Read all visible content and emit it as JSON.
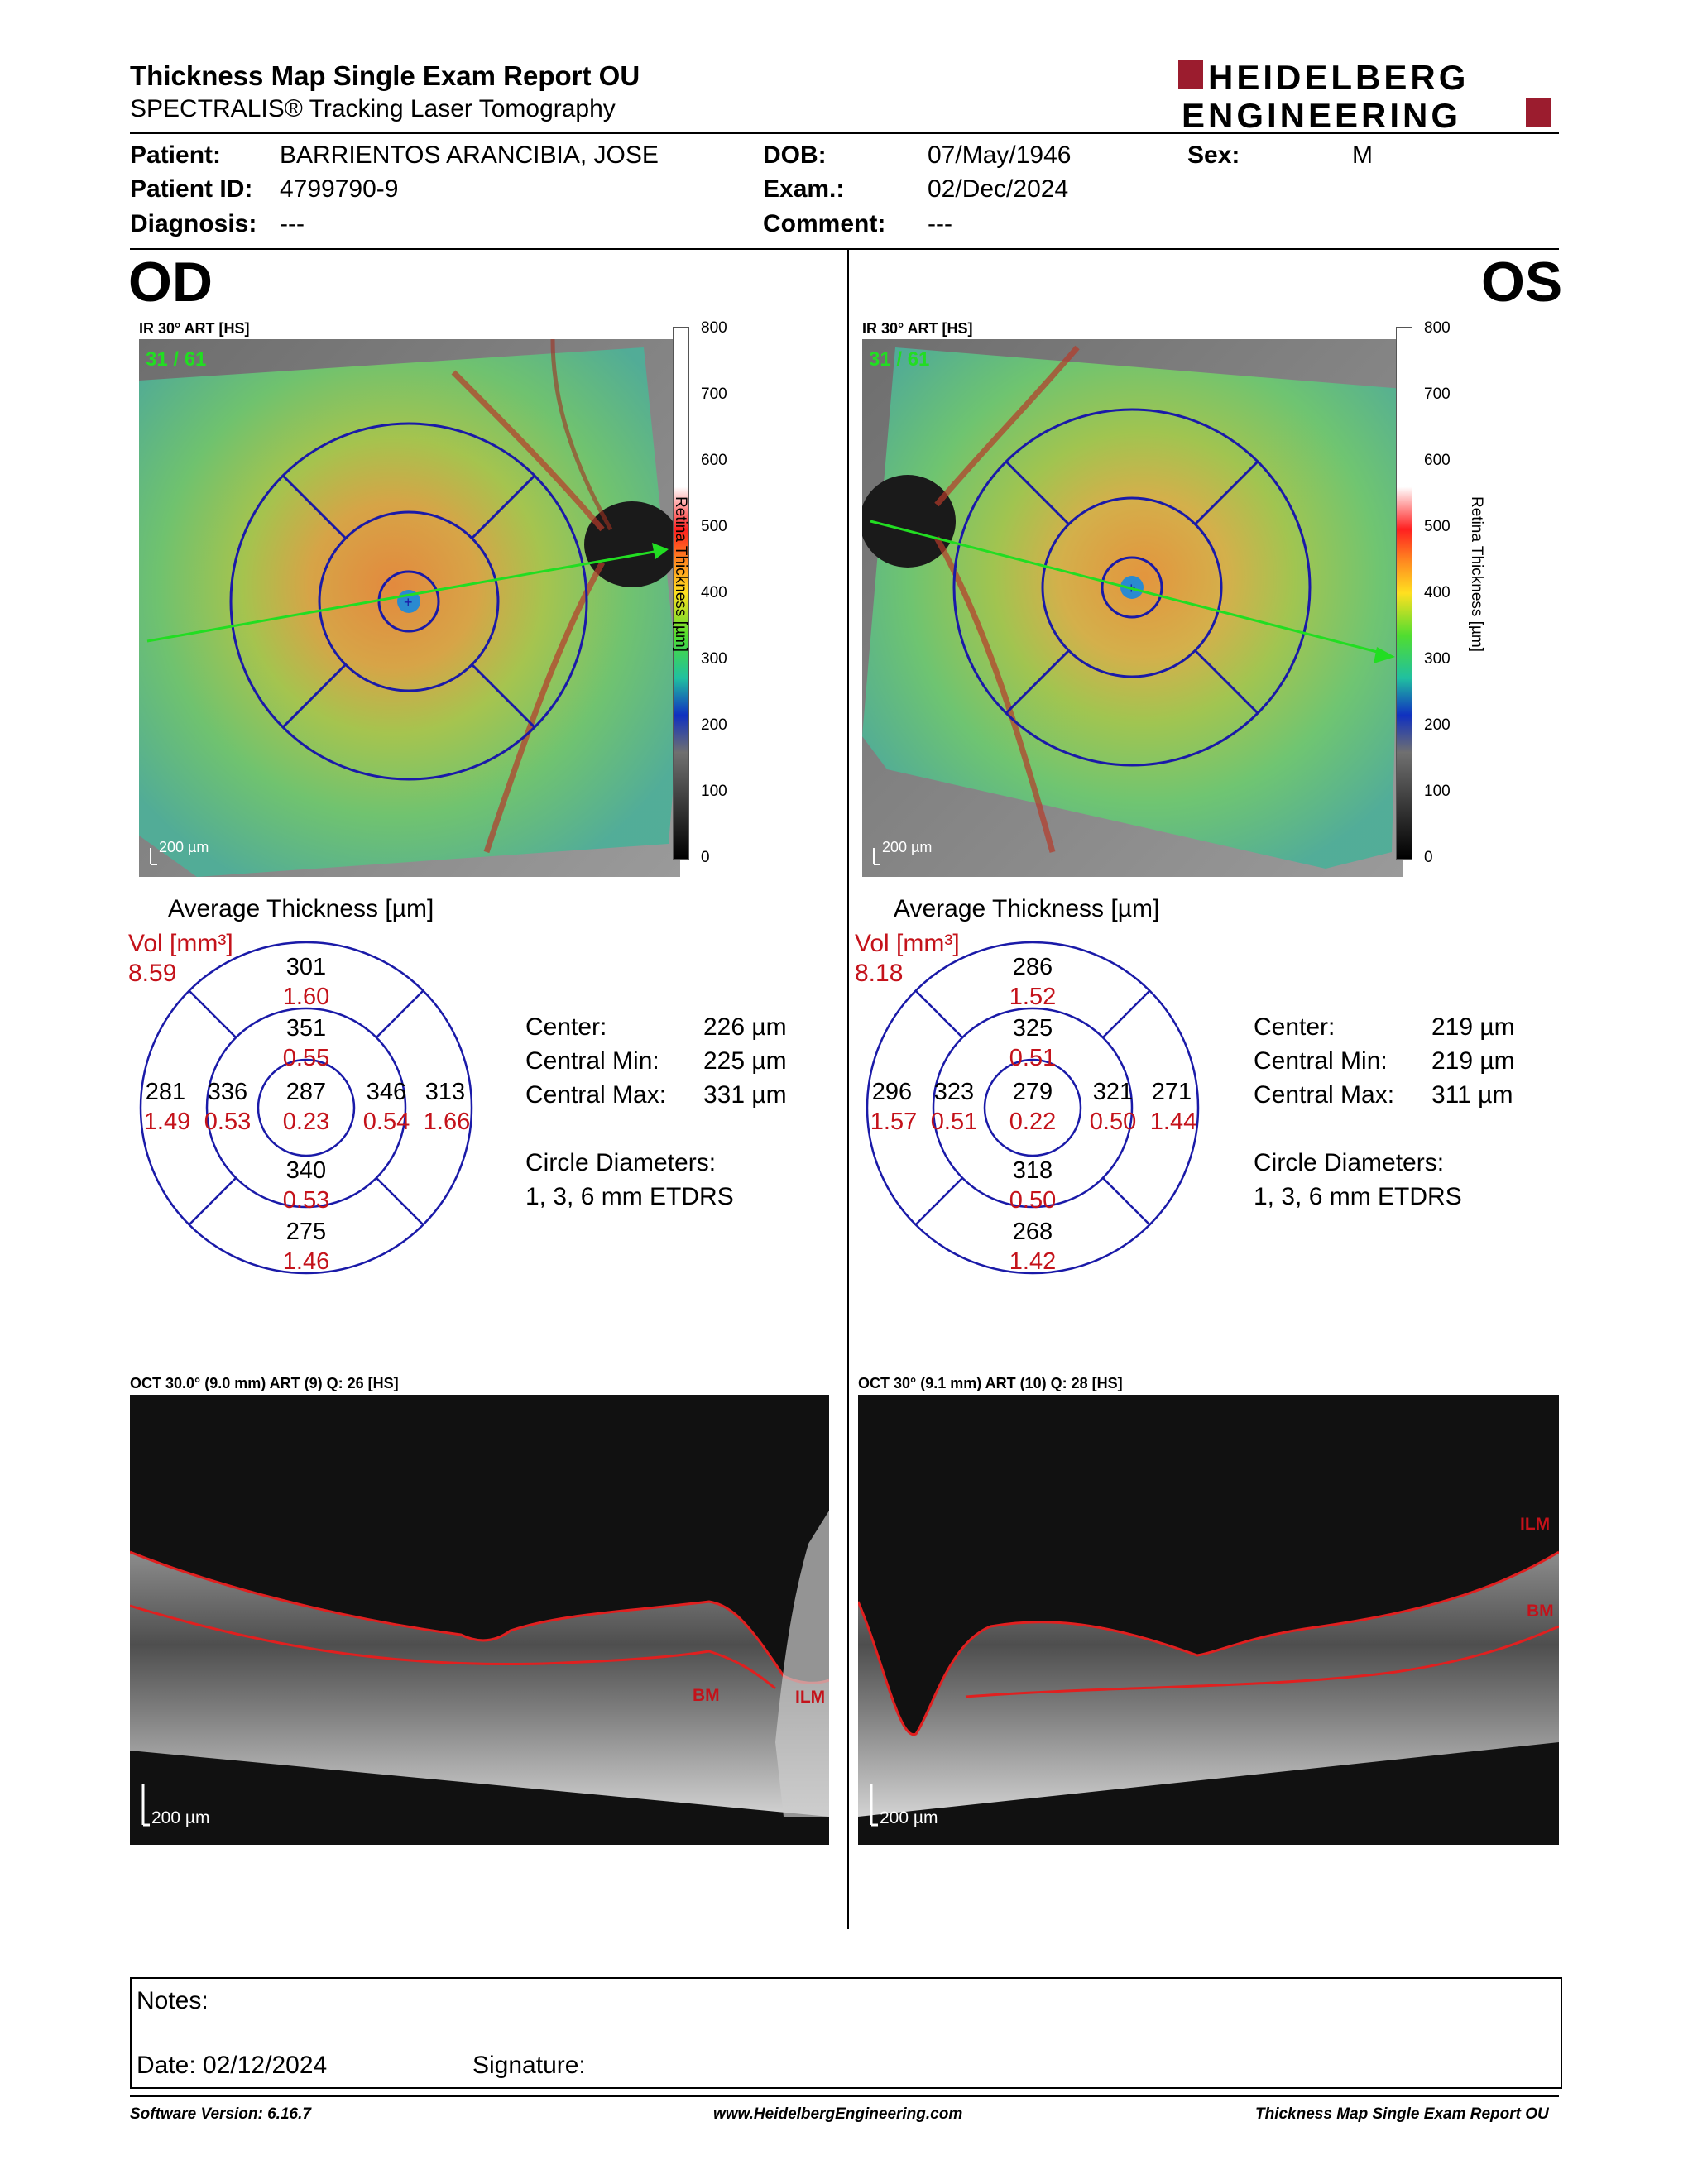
{
  "header": {
    "title": "Thickness Map Single Exam Report OU",
    "subtitle": "SPECTRALIS® Tracking Laser Tomography",
    "logo_text_1": "HEIDELBERG",
    "logo_text_2": "ENGINEERING"
  },
  "patient": {
    "patient_label": "Patient:",
    "patient_value": "BARRIENTOS ARANCIBIA, JOSE",
    "id_label": "Patient ID:",
    "id_value": "4799790-9",
    "diagnosis_label": "Diagnosis:",
    "diagnosis_value": "---",
    "dob_label": "DOB:",
    "dob_value": "07/May/1946",
    "exam_label": "Exam.:",
    "exam_value": "02/Dec/2024",
    "comment_label": "Comment:",
    "comment_value": "---",
    "sex_label": "Sex:",
    "sex_value": "M"
  },
  "colors": {
    "black_value": "#000000",
    "red_value": "#c4121a",
    "grid_blue": "#1a1aa8",
    "arrow_green": "#22dd22",
    "logo_red": "#9b1c2e"
  },
  "scale": {
    "ticks": [
      "800",
      "700",
      "600",
      "500",
      "400",
      "300",
      "200",
      "100",
      "0"
    ],
    "label": "Retina Thickness [µm]"
  },
  "od": {
    "eye": "OD",
    "ir_label": "IR 30° ART [HS]",
    "frames": "31 / 61",
    "scalebar": "200 µm",
    "avg_title": "Average Thickness [µm]",
    "vol_label": "Vol [mm³]",
    "vol_value": "8.59",
    "grid": {
      "outer_sup": [
        "301",
        "1.60"
      ],
      "inner_sup": [
        "351",
        "0.55"
      ],
      "outer_temp": [
        "281",
        "1.49"
      ],
      "inner_temp": [
        "336",
        "0.53"
      ],
      "center": [
        "287",
        "0.23"
      ],
      "inner_nasal": [
        "346",
        "0.54"
      ],
      "outer_nasal": [
        "313",
        "1.66"
      ],
      "inner_inf": [
        "340",
        "0.53"
      ],
      "outer_inf": [
        "275",
        "1.46"
      ]
    },
    "center_label": "Center:",
    "center_value": "226 µm",
    "cmin_label": "Central Min:",
    "cmin_value": "225 µm",
    "cmax_label": "Central Max:",
    "cmax_value": "331 µm",
    "circ_label": "Circle Diameters:",
    "circ_value": "1, 3, 6 mm ETDRS",
    "oct_label": "OCT 30.0° (9.0 mm) ART (9) Q: 26 [HS]",
    "oct_scalebar": "200 µm",
    "ilm": "ILM",
    "bm": "BM"
  },
  "os": {
    "eye": "OS",
    "ir_label": "IR 30° ART [HS]",
    "frames": "31 / 61",
    "scalebar": "200 µm",
    "avg_title": "Average Thickness [µm]",
    "vol_label": "Vol [mm³]",
    "vol_value": "8.18",
    "grid": {
      "outer_sup": [
        "286",
        "1.52"
      ],
      "inner_sup": [
        "325",
        "0.51"
      ],
      "outer_temp": [
        "296",
        "1.57"
      ],
      "inner_temp": [
        "323",
        "0.51"
      ],
      "center": [
        "279",
        "0.22"
      ],
      "inner_nasal": [
        "321",
        "0.50"
      ],
      "outer_nasal": [
        "271",
        "1.44"
      ],
      "inner_inf": [
        "318",
        "0.50"
      ],
      "outer_inf": [
        "268",
        "1.42"
      ]
    },
    "center_label": "Center:",
    "center_value": "219 µm",
    "cmin_label": "Central Min:",
    "cmin_value": "219 µm",
    "cmax_label": "Central Max:",
    "cmax_value": "311 µm",
    "circ_label": "Circle Diameters:",
    "circ_value": "1, 3, 6 mm ETDRS",
    "oct_label": "OCT 30° (9.1 mm) ART (10) Q: 28 [HS]",
    "oct_scalebar": "200 µm",
    "ilm": "ILM",
    "bm": "BM"
  },
  "notes": {
    "notes_label": "Notes:",
    "date_label": "Date: 02/12/2024",
    "signature_label": "Signature:"
  },
  "footer": {
    "software": "Software Version: 6.16.7",
    "website": "www.HeidelbergEngineering.com",
    "report": "Thickness Map Single Exam Report OU"
  }
}
